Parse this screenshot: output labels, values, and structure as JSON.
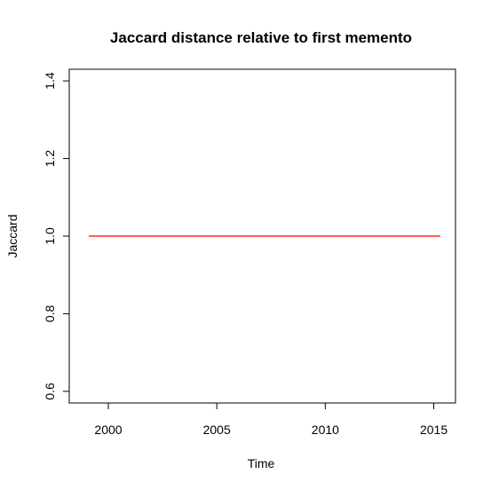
{
  "chart_data": {
    "type": "line",
    "title": "Jaccard distance relative to first memento",
    "xlabel": "Time",
    "ylabel": "Jaccard",
    "xlim": [
      1998.2,
      2016.0
    ],
    "ylim": [
      0.57,
      1.43
    ],
    "x_ticks": [
      2000,
      2005,
      2010,
      2015
    ],
    "x_tick_labels": [
      "2000",
      "2005",
      "2010",
      "2015"
    ],
    "y_ticks": [
      0.6,
      0.8,
      1.0,
      1.2,
      1.4
    ],
    "y_tick_labels": [
      "0.6",
      "0.8",
      "1.0",
      "1.2",
      "1.4"
    ],
    "grid": false,
    "legend": "none",
    "series": [
      {
        "color": "#ff0000",
        "x": [
          1999.1,
          2015.3
        ],
        "y": [
          1.0,
          1.0
        ]
      }
    ]
  }
}
